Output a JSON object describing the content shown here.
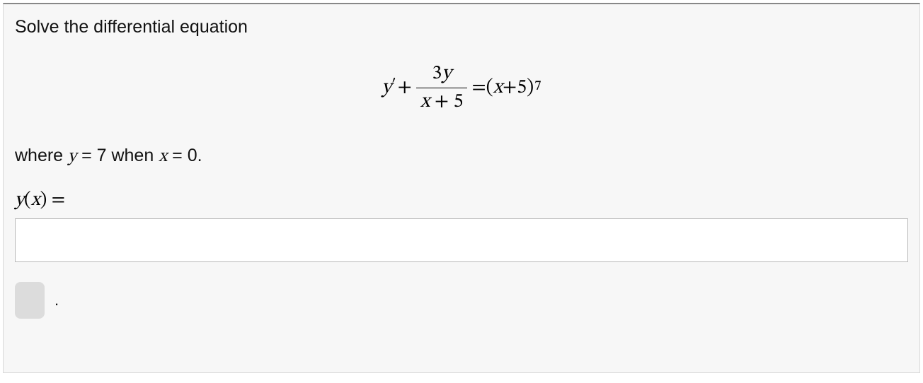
{
  "panel": {
    "background_color": "#f7f7f7",
    "border_color": "#d8d8d8",
    "top_border_color": "#888888"
  },
  "prompt": {
    "text": "Solve the differential equation",
    "fontsize": 25,
    "color": "#111111"
  },
  "equation": {
    "lhs_y": "y",
    "lhs_prime": "′",
    "plus": " + ",
    "frac_num_coeff": "3",
    "frac_num_var": "y",
    "frac_den_var": "x",
    "frac_den_plus": " + ",
    "frac_den_const": "5",
    "equals": " = ",
    "rhs_open": "(",
    "rhs_var": "x",
    "rhs_plus": " + ",
    "rhs_const": "5",
    "rhs_close": ")",
    "rhs_exp": "7",
    "fontsize": 28,
    "color": "#000000",
    "font_family": "serif-italic"
  },
  "condition": {
    "prefix": "where ",
    "y": "y",
    "eq1": " = ",
    "yval": "7",
    "mid": " when ",
    "x": "x",
    "eq2": " = ",
    "xval": "0",
    "suffix": ".",
    "fontsize": 25
  },
  "answer": {
    "label_y": "y",
    "label_open": "(",
    "label_x": "x",
    "label_close": ")",
    "label_eq": " =",
    "input_value": "",
    "input_placeholder": ""
  },
  "submit": {
    "dot": "."
  }
}
